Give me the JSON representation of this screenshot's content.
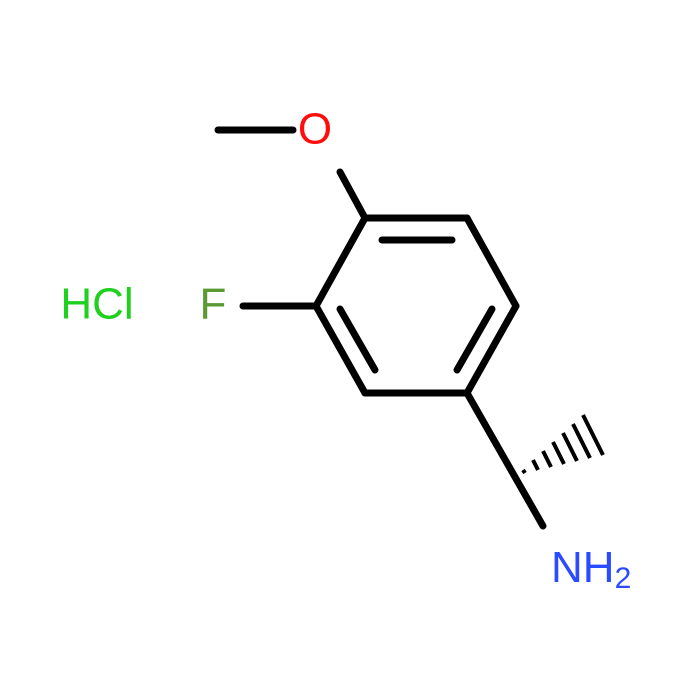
{
  "atoms": {
    "oxygen": "O",
    "fluorine": "F",
    "amine": "NH",
    "amine_subscript": "2",
    "salt": "HCl"
  }
}
